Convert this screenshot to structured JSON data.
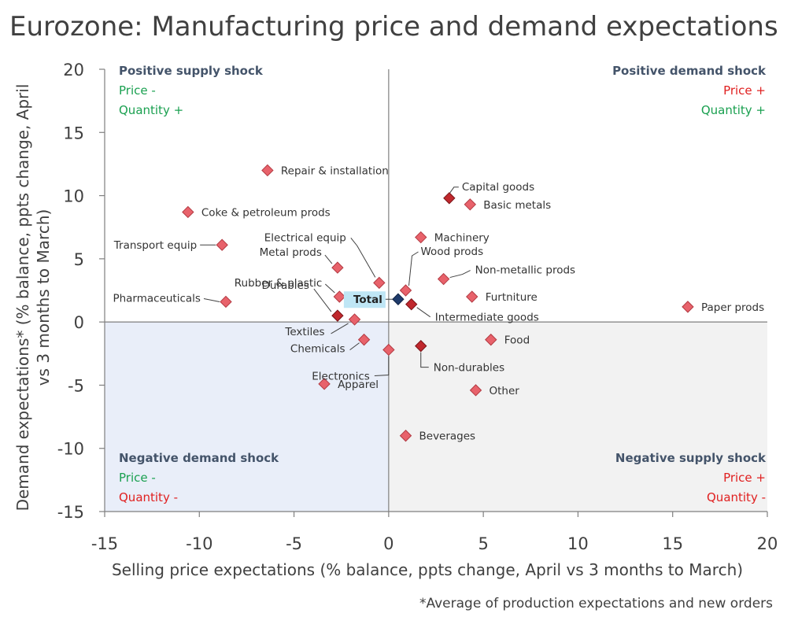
{
  "title": "Eurozone: Manufacturing price and demand expectations",
  "footnote": "*Average of production expectations and new orders",
  "chart_data": {
    "type": "scatter",
    "xlabel": "Selling price expectations (% balance, ppts change, April vs 3 months to March)",
    "ylabel": "Demand expectations* (% balance, ppts change, April vs 3 months to March)",
    "xlim": [
      -15,
      20
    ],
    "ylim": [
      -15,
      20
    ],
    "xticks": [
      -15,
      -10,
      -5,
      0,
      5,
      10,
      15,
      20
    ],
    "yticks": [
      -15,
      -10,
      -5,
      0,
      5,
      10,
      15,
      20
    ],
    "colors": {
      "point": "#e8626b",
      "point_dark": "#c0282d",
      "total": "#1f3b6b",
      "neg_demand_fill": "#e9eef9",
      "neg_supply_fill": "#f2f2f2",
      "total_label_bg": "#bfe6f5"
    },
    "quadrants": {
      "top_left": {
        "title": "Positive supply shock",
        "line1": "Price -",
        "line2": "Quantity +"
      },
      "top_right": {
        "title": "Positive demand shock",
        "line1": "Price +",
        "line2": "Quantity +"
      },
      "bottom_left": {
        "title": "Negative demand shock",
        "line1": "Price -",
        "line2": "Quantity -"
      },
      "bottom_right": {
        "title": "Negative supply shock",
        "line1": "Price +",
        "line2": "Quantity -"
      }
    },
    "points": [
      {
        "label": "Repair & installation",
        "x": -6.4,
        "y": 12.0,
        "kind": "light"
      },
      {
        "label": "Coke & petroleum prods",
        "x": -10.6,
        "y": 8.7,
        "kind": "light"
      },
      {
        "label": "Transport equip",
        "x": -8.8,
        "y": 6.1,
        "kind": "light"
      },
      {
        "label": "Pharmaceuticals",
        "x": -8.6,
        "y": 1.6,
        "kind": "light"
      },
      {
        "label": "Electrical equip",
        "x": -0.5,
        "y": 3.1,
        "kind": "light"
      },
      {
        "label": "Metal prods",
        "x": -2.7,
        "y": 4.3,
        "kind": "light"
      },
      {
        "label": "Rubber & plastic",
        "x": -2.6,
        "y": 2.0,
        "kind": "light"
      },
      {
        "label": "Durables",
        "x": -2.7,
        "y": 0.5,
        "kind": "dark"
      },
      {
        "label": "Textiles",
        "x": -1.8,
        "y": 0.2,
        "kind": "light"
      },
      {
        "label": "Chemicals",
        "x": -1.3,
        "y": -1.4,
        "kind": "light"
      },
      {
        "label": "Electronics",
        "x": 0.0,
        "y": -2.2,
        "kind": "light"
      },
      {
        "label": "Apparel",
        "x": -3.4,
        "y": -4.9,
        "kind": "light"
      },
      {
        "label": "Total",
        "x": 0.5,
        "y": 1.8,
        "kind": "total"
      },
      {
        "label": "Wood prods",
        "x": 0.9,
        "y": 2.5,
        "kind": "light"
      },
      {
        "label": "Intermediate goods",
        "x": 1.2,
        "y": 1.4,
        "kind": "dark"
      },
      {
        "label": "Capital goods",
        "x": 3.2,
        "y": 9.8,
        "kind": "dark"
      },
      {
        "label": "Basic metals",
        "x": 4.3,
        "y": 9.3,
        "kind": "light"
      },
      {
        "label": "Machinery",
        "x": 1.7,
        "y": 6.7,
        "kind": "light"
      },
      {
        "label": "Non-metallic prods",
        "x": 2.9,
        "y": 3.4,
        "kind": "light"
      },
      {
        "label": "Furtniture",
        "x": 4.4,
        "y": 2.0,
        "kind": "light"
      },
      {
        "label": "Paper prods",
        "x": 15.8,
        "y": 1.2,
        "kind": "light"
      },
      {
        "label": "Food",
        "x": 5.4,
        "y": -1.4,
        "kind": "light"
      },
      {
        "label": "Non-durables",
        "x": 1.7,
        "y": -1.9,
        "kind": "dark"
      },
      {
        "label": "Other",
        "x": 4.6,
        "y": -5.4,
        "kind": "light"
      },
      {
        "label": "Beverages",
        "x": 0.9,
        "y": -9.0,
        "kind": "light"
      }
    ]
  }
}
